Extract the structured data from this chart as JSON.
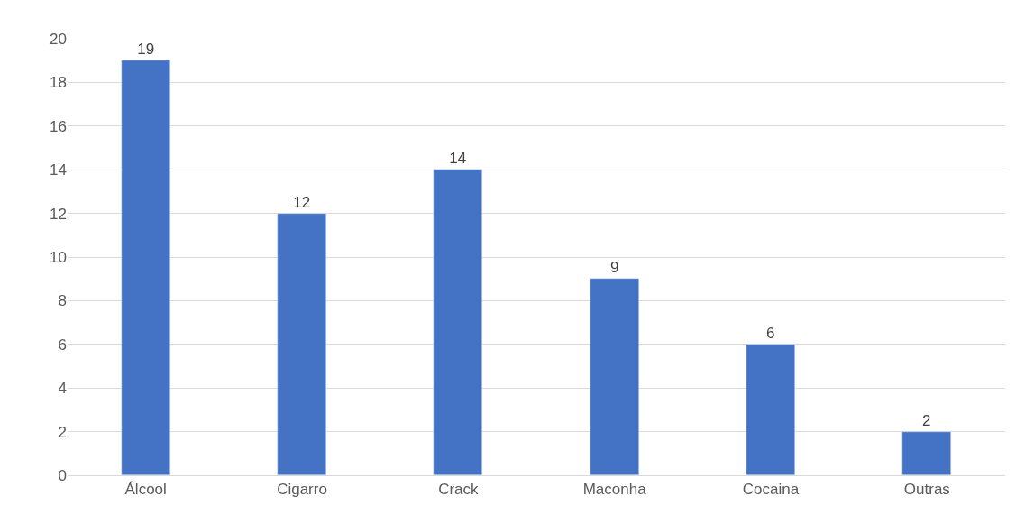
{
  "chart_data": {
    "type": "bar",
    "categories": [
      "Álcool",
      "Cigarro",
      "Crack",
      "Maconha",
      "Cocaina",
      "Outras"
    ],
    "values": [
      19,
      12,
      14,
      9,
      6,
      2
    ],
    "color": "#4472c4",
    "ylim": [
      0,
      20
    ],
    "yticks": [
      0,
      2,
      4,
      6,
      8,
      10,
      12,
      14,
      16,
      18,
      20
    ],
    "grid": "y",
    "data_labels": true,
    "legend": false
  }
}
